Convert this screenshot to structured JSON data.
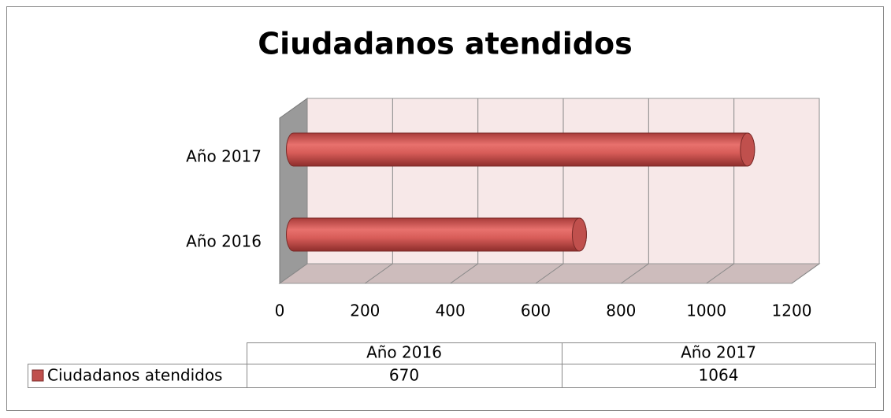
{
  "chart_data": {
    "type": "bar",
    "orientation": "horizontal",
    "title": "Ciudadanos atendidos",
    "categories": [
      "Año 2016",
      "Año 2017"
    ],
    "series": [
      {
        "name": "Ciudadanos atendidos",
        "color": "#c0504d",
        "values": [
          670,
          1064
        ]
      }
    ],
    "xlim": [
      0,
      1200
    ],
    "xticks": [
      0,
      200,
      400,
      600,
      800,
      1000,
      1200
    ],
    "grid": true,
    "data_table": true
  }
}
